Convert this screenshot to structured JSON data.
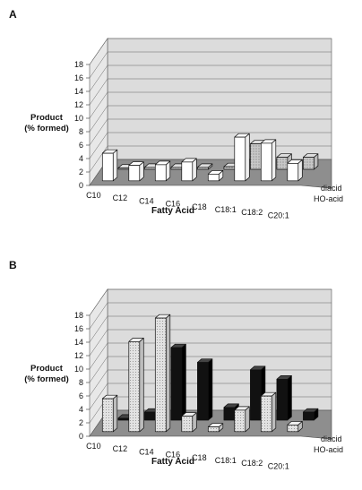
{
  "chart_data": [
    {
      "panel_label": "A",
      "type": "bar",
      "categories": [
        "C10",
        "C12",
        "C14",
        "C16",
        "C18",
        "C18:1",
        "C18:2",
        "C20:1"
      ],
      "series": [
        {
          "name": "HO-acid",
          "values": [
            4.1,
            2.3,
            2.4,
            2.8,
            1.0,
            6.5,
            5.6,
            2.6
          ]
        },
        {
          "name": "diacid",
          "values": [
            0.2,
            0.3,
            0.3,
            0.3,
            0.4,
            3.8,
            1.8,
            1.8
          ]
        }
      ],
      "xlabel": "Fatty Acid",
      "ylabel": "Product (% formed)",
      "ylabel_lines": [
        "Product",
        "(% formed)"
      ],
      "ylim": [
        0,
        18
      ],
      "yticks": [
        "0",
        "2",
        "4",
        "6",
        "8",
        "10",
        "12",
        "14",
        "16",
        "18"
      ],
      "grid": true
    },
    {
      "panel_label": "B",
      "type": "bar",
      "categories": [
        "C10",
        "C12",
        "C14",
        "C16",
        "C18",
        "C18:1",
        "C18:2",
        "C20:1"
      ],
      "series": [
        {
          "name": "HO-acid",
          "values": [
            4.9,
            13.4,
            16.9,
            2.3,
            0.7,
            3.2,
            5.3,
            1.0
          ]
        },
        {
          "name": "diacid",
          "values": [
            0.3,
            1.2,
            10.8,
            8.6,
            1.9,
            7.5,
            6.1,
            1.2
          ]
        }
      ],
      "xlabel": "Fatty Acid",
      "ylabel": "Product (% formed)",
      "ylabel_lines": [
        "Product",
        "(% formed)"
      ],
      "ylim": [
        0,
        18
      ],
      "yticks": [
        "0",
        "2",
        "4",
        "6",
        "8",
        "10",
        "12",
        "14",
        "16",
        "18"
      ],
      "grid": true
    }
  ],
  "series_colors": {
    "HO-acid_A": "#ffffff",
    "diacid_A": "#bdbdbd",
    "HO-acid_B": "#d4d4d4",
    "diacid_B": "#111111"
  }
}
